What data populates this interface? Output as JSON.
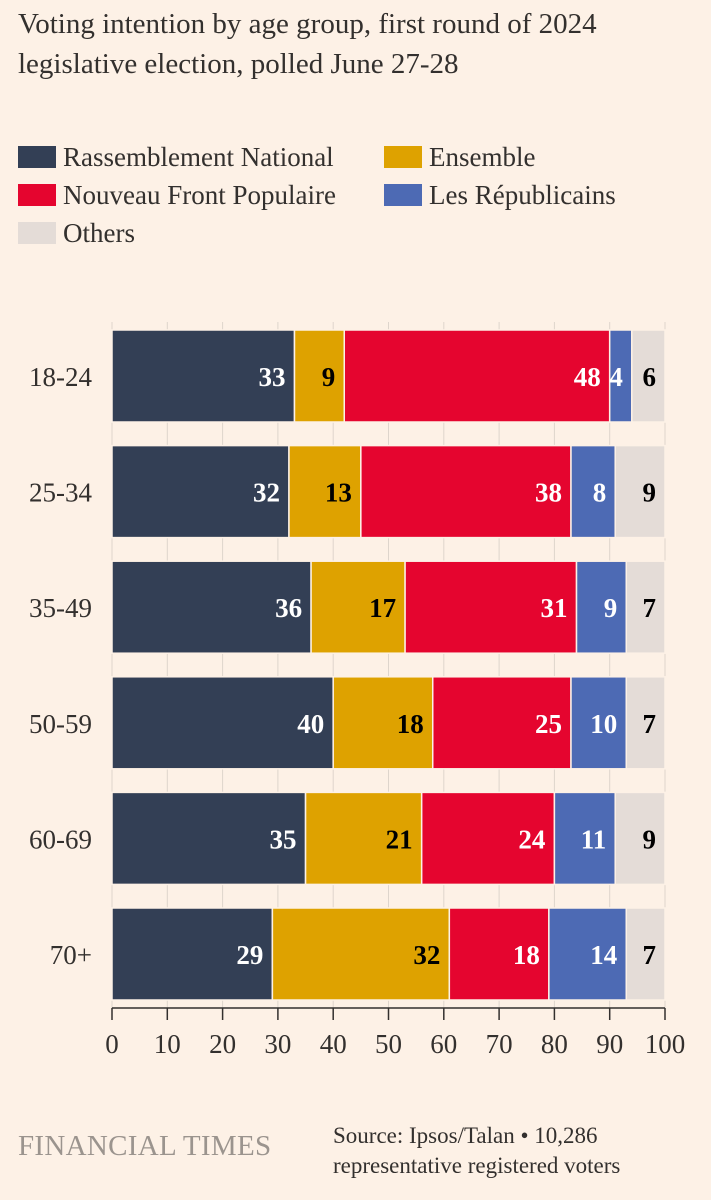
{
  "title": "Voting intention by age group, first round of 2024 legislative election, polled June 27-28",
  "legend": [
    {
      "label": "Rassemblement National",
      "color": "#333f55"
    },
    {
      "label": "Ensemble",
      "color": "#dea200"
    },
    {
      "label": "Nouveau Front Populaire",
      "color": "#e5052f"
    },
    {
      "label": "Les Républicains",
      "color": "#4d6ab4"
    },
    {
      "label": "Others",
      "color": "#e4dcd7"
    }
  ],
  "chart_data": {
    "type": "bar",
    "orientation": "horizontal",
    "stacked": true,
    "categories": [
      "18-24",
      "25-34",
      "35-49",
      "50-59",
      "60-69",
      "70+"
    ],
    "series": [
      {
        "name": "Rassemblement National",
        "values": [
          33,
          32,
          36,
          40,
          35,
          29
        ],
        "color": "#333f55",
        "label_color": "#ffffff"
      },
      {
        "name": "Ensemble",
        "values": [
          9,
          13,
          17,
          18,
          21,
          32
        ],
        "color": "#dea200",
        "label_color": "#000000"
      },
      {
        "name": "Nouveau Front Populaire",
        "values": [
          48,
          38,
          31,
          25,
          24,
          18
        ],
        "color": "#e5052f",
        "label_color": "#ffffff"
      },
      {
        "name": "Les Républicains",
        "values": [
          4,
          8,
          9,
          10,
          11,
          14
        ],
        "color": "#4d6ab4",
        "label_color": "#ffffff"
      },
      {
        "name": "Others",
        "values": [
          6,
          9,
          7,
          7,
          9,
          7
        ],
        "color": "#e4dcd7",
        "label_color": "#000000"
      }
    ],
    "x_ticks": [
      0,
      10,
      20,
      30,
      40,
      50,
      60,
      70,
      80,
      90,
      100
    ],
    "xlim": [
      0,
      100
    ],
    "grid": true
  },
  "footer": {
    "brand": "FINANCIAL TIMES",
    "source": "Source: Ipsos/Talan • 10,286 representative registered voters"
  }
}
